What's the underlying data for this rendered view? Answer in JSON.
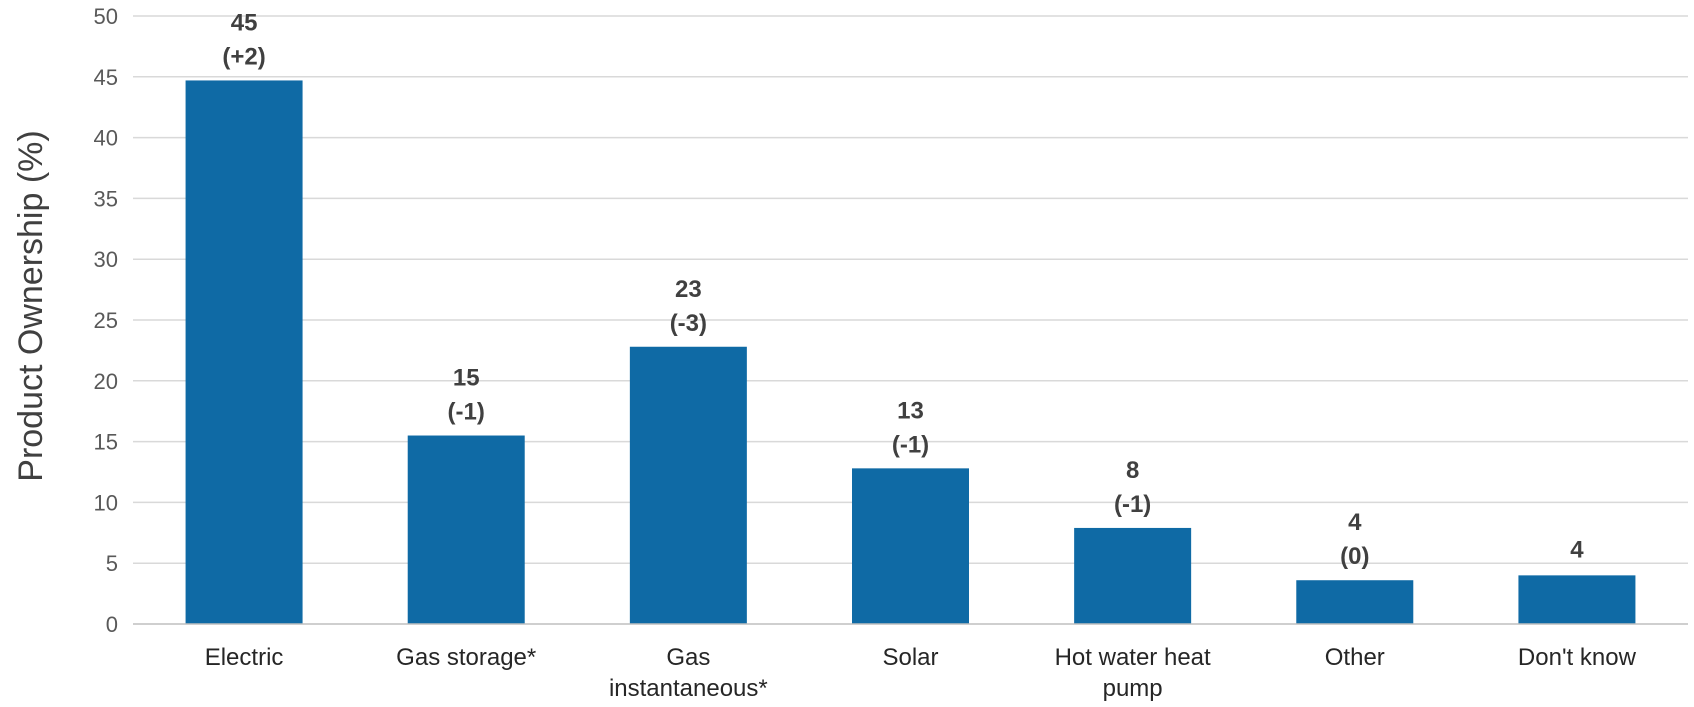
{
  "chart_data": {
    "type": "bar",
    "ylabel": "Product Ownership (%)",
    "xlabel": "",
    "ylim": [
      0,
      50
    ],
    "yticks": [
      "0",
      "5",
      "10",
      "15",
      "20",
      "25",
      "30",
      "35",
      "40",
      "45",
      "50"
    ],
    "grid": true,
    "categories": [
      [
        "Electric"
      ],
      [
        "Gas storage*"
      ],
      [
        "Gas",
        "instantaneous*"
      ],
      [
        "Solar"
      ],
      [
        "Hot water heat",
        "pump"
      ],
      [
        "Other"
      ],
      [
        "Don't know"
      ]
    ],
    "values": [
      44.7,
      15.5,
      22.8,
      12.8,
      7.9,
      3.6,
      4.0
    ],
    "value_labels": [
      "45",
      "15",
      "23",
      "13",
      "8",
      "4",
      "4"
    ],
    "change_labels": [
      "(+2)",
      "(-1)",
      "(-3)",
      "(-1)",
      "(-1)",
      "(0)",
      ""
    ],
    "bar_color": "#0F6AA5"
  }
}
